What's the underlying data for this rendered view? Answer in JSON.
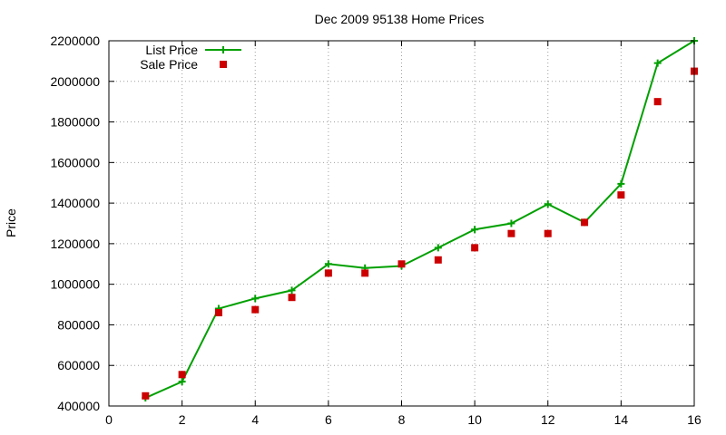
{
  "chart_data": {
    "type": "line",
    "title": "Dec 2009 95138 Home Prices",
    "xlabel": "",
    "ylabel": "Price",
    "xlim": [
      0,
      16
    ],
    "ylim": [
      400000,
      2200000
    ],
    "xticks": [
      0,
      2,
      4,
      6,
      8,
      10,
      12,
      14,
      16
    ],
    "yticks": [
      400000,
      600000,
      800000,
      1000000,
      1200000,
      1400000,
      1600000,
      1800000,
      2000000,
      2200000
    ],
    "grid": true,
    "legend_position": "top-left",
    "series": [
      {
        "name": "List Price",
        "kind": "line-with-plus-markers",
        "color": "#00a000",
        "x": [
          1,
          2,
          3,
          4,
          5,
          6,
          7,
          8,
          9,
          10,
          11,
          12,
          13,
          14,
          15,
          16
        ],
        "values": [
          440000,
          520000,
          880000,
          930000,
          970000,
          1100000,
          1080000,
          1090000,
          1180000,
          1270000,
          1300000,
          1395000,
          1305000,
          1495000,
          2090000,
          2200000
        ]
      },
      {
        "name": "Sale Price",
        "kind": "square-points",
        "color": "#cc0000",
        "x": [
          1,
          2,
          3,
          4,
          5,
          6,
          7,
          8,
          9,
          10,
          11,
          12,
          13,
          14,
          15,
          16
        ],
        "values": [
          450000,
          555000,
          860000,
          875000,
          935000,
          1055000,
          1055000,
          1100000,
          1120000,
          1180000,
          1250000,
          1250000,
          1305000,
          1440000,
          1900000,
          2050000
        ]
      }
    ]
  }
}
